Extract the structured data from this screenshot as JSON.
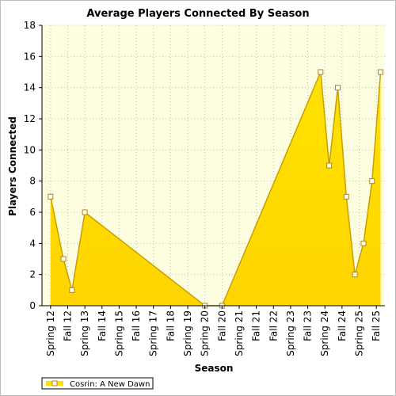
{
  "colors": {
    "plot_bg": "#fdfde0",
    "grid": "#bdbdbd",
    "area_top": "#ffe200",
    "area_bottom": "#ffd400",
    "line": "#c8a000",
    "marker_fill": "#ffffff",
    "marker_stroke": "#b8860b"
  },
  "chart_data": {
    "type": "area",
    "title": "Average Players Connected By Season",
    "xlabel": "Season",
    "ylabel": "Players Connected",
    "ylim": [
      0,
      18
    ],
    "yticks": [
      0,
      2,
      4,
      6,
      8,
      10,
      12,
      14,
      16,
      18
    ],
    "grid": true,
    "legend_position": "bottom-left",
    "categories": [
      "Spring 12",
      "Fall 12",
      "Spring 13",
      "Fall 14",
      "Spring 15",
      "Fall 16",
      "Spring 17",
      "Fall 18",
      "Spring 19",
      "Spring 20",
      "Fall 20",
      "Spring 21",
      "Fall 21",
      "Fall 22",
      "Spring 23",
      "Fall 23",
      "Spring 24",
      "Fall 24",
      "Spring 25",
      "Fall 25"
    ],
    "series": [
      {
        "name": "Cosrin: A New Dawn",
        "points": [
          {
            "x": "Spring 12",
            "y": 7
          },
          {
            "x": "Fall 12",
            "y": 3
          },
          {
            "x": "Fall 12",
            "y": 1
          },
          {
            "x": "Spring 13",
            "y": 6
          },
          {
            "x": "Spring 20",
            "y": 0
          },
          {
            "x": "Fall 20",
            "y": 0
          },
          {
            "x": "Spring 24",
            "y": 15
          },
          {
            "x": "Spring 24",
            "y": 9
          },
          {
            "x": "Fall 24",
            "y": 14
          },
          {
            "x": "Fall 24",
            "y": 7
          },
          {
            "x": "Spring 25",
            "y": 2
          },
          {
            "x": "Spring 25",
            "y": 4
          },
          {
            "x": "Fall 25",
            "y": 8
          },
          {
            "x": "Fall 25",
            "y": 15
          }
        ]
      }
    ]
  }
}
